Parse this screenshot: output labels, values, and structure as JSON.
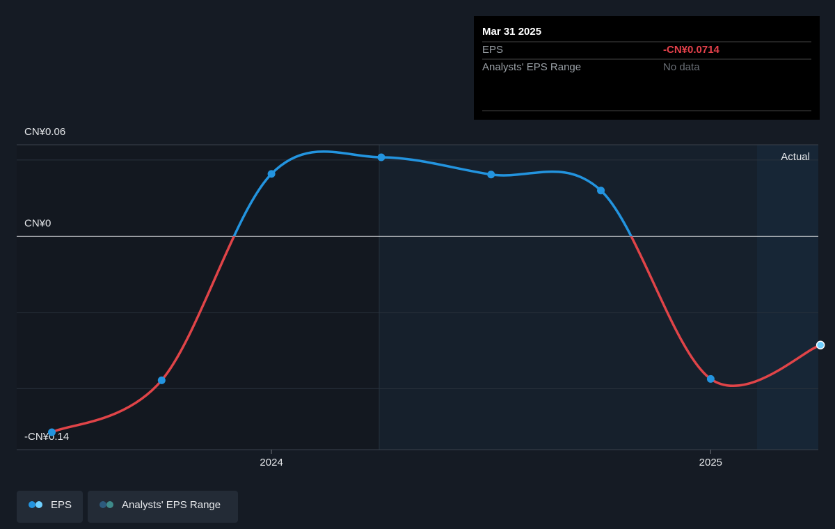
{
  "chart_data": {
    "type": "line",
    "x": [
      2023.5,
      2023.75,
      2024.0,
      2024.25,
      2024.5,
      2024.75,
      2025.0,
      2025.25
    ],
    "series": [
      {
        "name": "EPS",
        "color": "#2394df",
        "negative_color": "#e04448",
        "values": [
          -0.1286,
          -0.0945,
          0.0409,
          0.0518,
          0.0405,
          0.03,
          -0.0936,
          -0.0714
        ],
        "value_labels": [
          null,
          null,
          null,
          null,
          null,
          null,
          null,
          "-CN¥0.0714"
        ]
      }
    ],
    "legend_extra": "Analysts' EPS Range",
    "annotation": "Actual",
    "xlim": [
      2023.42,
      2025.245
    ],
    "xticks": [
      2024,
      2025
    ],
    "ylim": [
      -0.14,
      0.06
    ],
    "yticks": [
      {
        "value": -0.14,
        "label": "-CN¥0.14"
      },
      {
        "value": 0,
        "label": "CN¥0"
      },
      {
        "value": 0.06,
        "label": "CN¥0.06"
      }
    ],
    "ygrid": [
      -0.1,
      -0.05,
      0.05
    ],
    "grid": true,
    "tooltip": {
      "date": "Mar 31 2025",
      "eps_label": "EPS",
      "range_label": "Analysts' EPS Range",
      "range_value": "No data"
    }
  }
}
